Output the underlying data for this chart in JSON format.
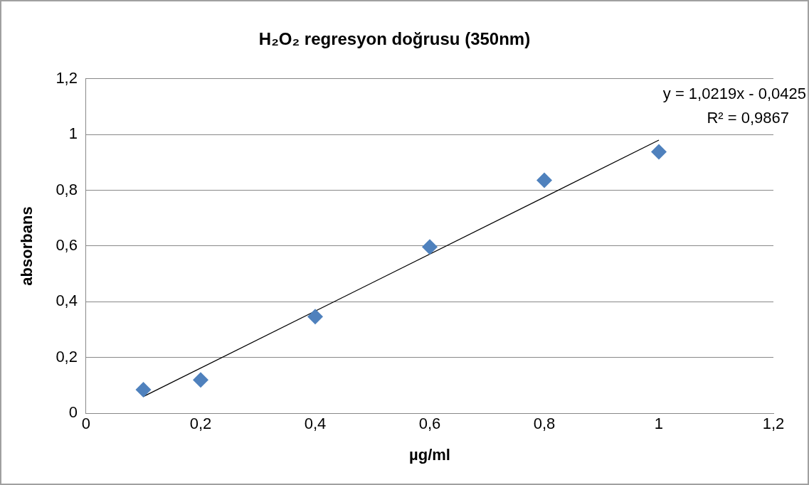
{
  "chart_data": {
    "type": "scatter",
    "title": "H₂O₂ regresyon doğrusu (350nm)",
    "xlabel": "µg/ml",
    "ylabel": "absorbans",
    "series": [
      {
        "type": "scatter",
        "color": "#4f81bd",
        "x": [
          0.1,
          0.2,
          0.4,
          0.6,
          0.8,
          1.0
        ],
        "values": [
          0.085,
          0.12,
          0.347,
          0.597,
          0.836,
          0.938
        ],
        "marker": "diamond"
      },
      {
        "type": "line",
        "color": "#000000",
        "x": [
          0.1,
          1.0
        ],
        "values": [
          0.06,
          0.98
        ],
        "marker": "none"
      }
    ],
    "xlim": [
      0,
      1.2
    ],
    "xticks": [
      0,
      {
        "value": 0.2,
        "label": "0,2"
      },
      {
        "value": 0.4,
        "label": "0,4"
      },
      {
        "value": 0.6,
        "label": "0,6"
      },
      {
        "value": 0.8,
        "label": "0,8"
      },
      1,
      {
        "value": 1.2,
        "label": "1,2"
      }
    ],
    "ylim": [
      0,
      1.2
    ],
    "yticks": [
      0,
      {
        "value": 0.2,
        "label": "0,2"
      },
      {
        "value": 0.4,
        "label": "0,4"
      },
      {
        "value": 0.6,
        "label": "0,6"
      },
      {
        "value": 0.8,
        "label": "0,8"
      },
      1,
      {
        "value": 1.2,
        "label": "1,2"
      }
    ],
    "grid": "y",
    "legend": false,
    "annotations": [
      "y = 1,0219x - 0,0425",
      "R² = 0,9867"
    ]
  }
}
